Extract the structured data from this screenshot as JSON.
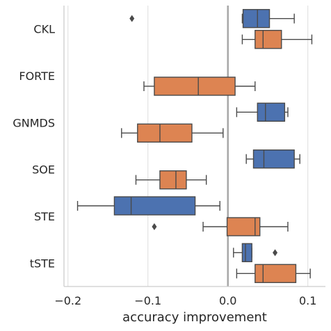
{
  "chart_data": {
    "type": "boxplot",
    "orientation": "horizontal",
    "xlabel": "accuracy improvement",
    "xlim": [
      -0.205,
      0.122
    ],
    "xticks": [
      -0.2,
      -0.1,
      0.0,
      0.1
    ],
    "xtick_labels": [
      "−0.2",
      "−0.1",
      "0.0",
      "0.1"
    ],
    "grid": "vertical",
    "reference_line_x": 0.0,
    "categories": [
      "CKL",
      "FORTE",
      "GNMDS",
      "SOE",
      "STE",
      "tSTE"
    ],
    "colors": {
      "series_a": "#4c72b0",
      "series_b": "#dd8452"
    },
    "boxes": [
      {
        "category": "CKL",
        "group": "series_a",
        "whisker_low": 0.018,
        "q1": 0.019,
        "median": 0.037,
        "q3": 0.052,
        "whisker_high": 0.083,
        "outliers": [
          -0.12
        ]
      },
      {
        "category": "CKL",
        "group": "series_b",
        "whisker_low": 0.018,
        "q1": 0.034,
        "median": 0.044,
        "q3": 0.067,
        "whisker_high": 0.105,
        "outliers": []
      },
      {
        "category": "FORTE",
        "group": "series_b",
        "whisker_low": -0.105,
        "q1": -0.092,
        "median": -0.037,
        "q3": 0.009,
        "whisker_high": 0.034,
        "outliers": []
      },
      {
        "category": "GNMDS",
        "group": "series_a",
        "whisker_low": 0.011,
        "q1": 0.037,
        "median": 0.047,
        "q3": 0.071,
        "whisker_high": 0.075,
        "outliers": []
      },
      {
        "category": "GNMDS",
        "group": "series_b",
        "whisker_low": -0.133,
        "q1": -0.113,
        "median": -0.085,
        "q3": -0.045,
        "whisker_high": -0.006,
        "outliers": []
      },
      {
        "category": "SOE",
        "group": "series_a",
        "whisker_low": 0.023,
        "q1": 0.032,
        "median": 0.045,
        "q3": 0.083,
        "whisker_high": 0.09,
        "outliers": []
      },
      {
        "category": "SOE",
        "group": "series_b",
        "whisker_low": -0.115,
        "q1": -0.085,
        "median": -0.065,
        "q3": -0.052,
        "whisker_high": -0.027,
        "outliers": []
      },
      {
        "category": "STE",
        "group": "series_a",
        "whisker_low": -0.188,
        "q1": -0.142,
        "median": -0.121,
        "q3": -0.041,
        "whisker_high": -0.01,
        "outliers": []
      },
      {
        "category": "STE",
        "group": "series_b",
        "whisker_low": -0.031,
        "q1": -0.001,
        "median": 0.034,
        "q3": 0.04,
        "whisker_high": 0.075,
        "outliers": [
          -0.092
        ]
      },
      {
        "category": "tSTE",
        "group": "series_a",
        "whisker_low": 0.007,
        "q1": 0.018,
        "median": 0.022,
        "q3": 0.03,
        "whisker_high": 0.03,
        "outliers": [
          0.059
        ]
      },
      {
        "category": "tSTE",
        "group": "series_b",
        "whisker_low": 0.011,
        "q1": 0.034,
        "median": 0.044,
        "q3": 0.085,
        "whisker_high": 0.103,
        "outliers": []
      }
    ]
  }
}
